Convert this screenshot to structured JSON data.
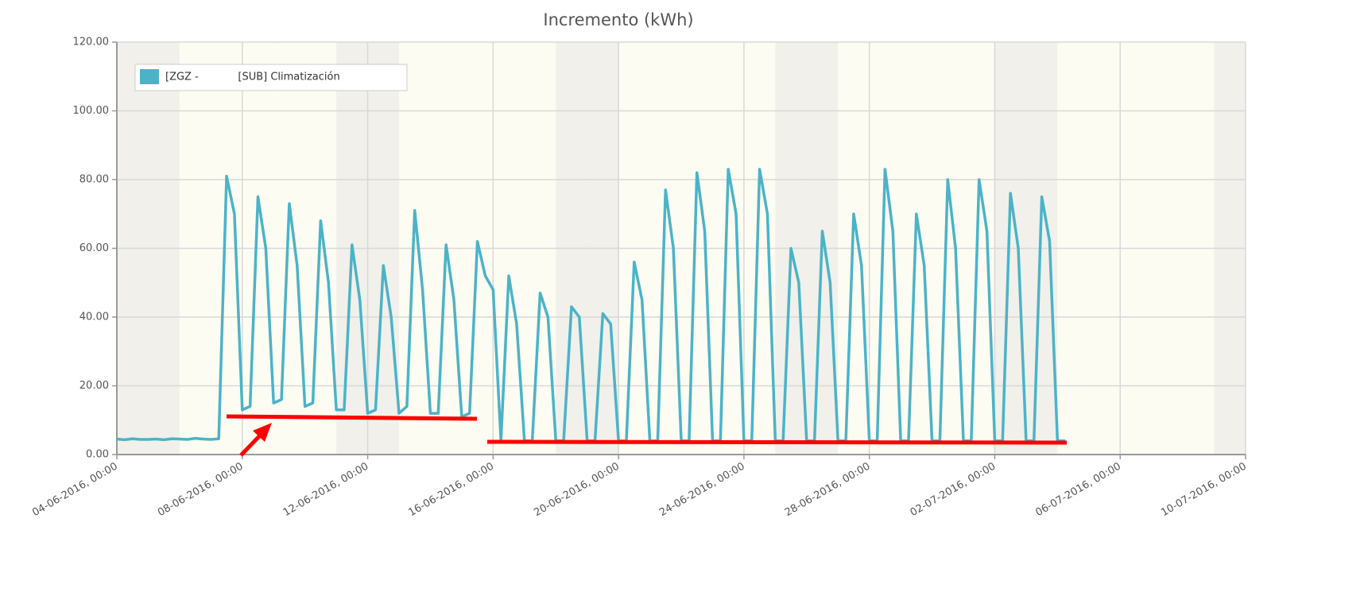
{
  "chart_data": {
    "type": "line",
    "title": "Incremento (kWh)",
    "x": [
      "2016-06-04T00:00",
      "2016-06-04T06:00",
      "2016-06-04T12:00",
      "2016-06-04T18:00",
      "2016-06-05T00:00",
      "2016-06-05T06:00",
      "2016-06-05T12:00",
      "2016-06-05T18:00",
      "2016-06-06T00:00",
      "2016-06-06T06:00",
      "2016-06-06T12:00",
      "2016-06-06T18:00",
      "2016-06-07T00:00",
      "2016-06-07T06:00",
      "2016-06-07T12:00",
      "2016-06-07T18:00",
      "2016-06-08T00:00",
      "2016-06-08T06:00",
      "2016-06-08T12:00",
      "2016-06-08T18:00",
      "2016-06-09T00:00",
      "2016-06-09T06:00",
      "2016-06-09T12:00",
      "2016-06-09T18:00",
      "2016-06-10T00:00",
      "2016-06-10T06:00",
      "2016-06-10T12:00",
      "2016-06-10T18:00",
      "2016-06-11T00:00",
      "2016-06-11T06:00",
      "2016-06-11T12:00",
      "2016-06-11T18:00",
      "2016-06-12T00:00",
      "2016-06-12T06:00",
      "2016-06-12T12:00",
      "2016-06-12T18:00",
      "2016-06-13T00:00",
      "2016-06-13T06:00",
      "2016-06-13T12:00",
      "2016-06-13T18:00",
      "2016-06-14T00:00",
      "2016-06-14T06:00",
      "2016-06-14T12:00",
      "2016-06-14T18:00",
      "2016-06-15T00:00",
      "2016-06-15T06:00",
      "2016-06-15T12:00",
      "2016-06-15T18:00",
      "2016-06-16T00:00",
      "2016-06-16T06:00",
      "2016-06-16T12:00",
      "2016-06-16T18:00",
      "2016-06-17T00:00",
      "2016-06-17T06:00",
      "2016-06-17T12:00",
      "2016-06-17T18:00",
      "2016-06-18T00:00",
      "2016-06-18T06:00",
      "2016-06-18T12:00",
      "2016-06-18T18:00",
      "2016-06-19T00:00",
      "2016-06-19T06:00",
      "2016-06-19T12:00",
      "2016-06-19T18:00",
      "2016-06-20T00:00",
      "2016-06-20T06:00",
      "2016-06-20T12:00",
      "2016-06-20T18:00",
      "2016-06-21T00:00",
      "2016-06-21T06:00",
      "2016-06-21T12:00",
      "2016-06-21T18:00",
      "2016-06-22T00:00",
      "2016-06-22T06:00",
      "2016-06-22T12:00",
      "2016-06-22T18:00",
      "2016-06-23T00:00",
      "2016-06-23T06:00",
      "2016-06-23T12:00",
      "2016-06-23T18:00",
      "2016-06-24T00:00",
      "2016-06-24T06:00",
      "2016-06-24T12:00",
      "2016-06-24T18:00",
      "2016-06-25T00:00",
      "2016-06-25T06:00",
      "2016-06-25T12:00",
      "2016-06-25T18:00",
      "2016-06-26T00:00",
      "2016-06-26T06:00",
      "2016-06-26T12:00",
      "2016-06-26T18:00",
      "2016-06-27T00:00",
      "2016-06-27T06:00",
      "2016-06-27T12:00",
      "2016-06-27T18:00",
      "2016-06-28T00:00",
      "2016-06-28T06:00",
      "2016-06-28T12:00",
      "2016-06-28T18:00",
      "2016-06-29T00:00",
      "2016-06-29T06:00",
      "2016-06-29T12:00",
      "2016-06-29T18:00",
      "2016-06-30T00:00",
      "2016-06-30T06:00",
      "2016-06-30T12:00",
      "2016-06-30T18:00",
      "2016-07-01T00:00",
      "2016-07-01T06:00",
      "2016-07-01T12:00",
      "2016-07-01T18:00",
      "2016-07-02T00:00",
      "2016-07-02T06:00",
      "2016-07-02T12:00",
      "2016-07-02T18:00",
      "2016-07-03T00:00",
      "2016-07-03T06:00",
      "2016-07-03T12:00",
      "2016-07-03T18:00",
      "2016-07-04T00:00",
      "2016-07-04T06:00"
    ],
    "series": [
      {
        "name": "[ZGZ -            [SUB] Climatización",
        "color": "#4bb3c8",
        "values": [
          4.5,
          4.3,
          4.6,
          4.4,
          4.4,
          4.5,
          4.3,
          4.6,
          4.5,
          4.4,
          4.7,
          4.5,
          4.4,
          4.6,
          81,
          70,
          13,
          14,
          75,
          60,
          15,
          16,
          73,
          55,
          14,
          15,
          68,
          50,
          13,
          13,
          61,
          45,
          12,
          13,
          55,
          40,
          12,
          14,
          71,
          48,
          12,
          12,
          61,
          45,
          11,
          12,
          62,
          52,
          48,
          4,
          52,
          38,
          4,
          4,
          47,
          40,
          4,
          4,
          43,
          40,
          4,
          4,
          41,
          38,
          4,
          4,
          56,
          45,
          4,
          4,
          77,
          60,
          4,
          4,
          82,
          65,
          4,
          4,
          83,
          70,
          4,
          4,
          83,
          70,
          4,
          4,
          60,
          50,
          4,
          4,
          65,
          50,
          4,
          4,
          70,
          55,
          4,
          4,
          83,
          65,
          4,
          4,
          70,
          55,
          4,
          4,
          80,
          60,
          4,
          4,
          80,
          65,
          4,
          4,
          76,
          60,
          4,
          4,
          75,
          62,
          4,
          4
        ]
      }
    ],
    "xlim": [
      "2016-06-04T00:00",
      "2016-07-10T00:00"
    ],
    "xticks": [
      {
        "value": "2016-06-04T00:00",
        "label": "04-06-2016, 00:00"
      },
      {
        "value": "2016-06-08T00:00",
        "label": "08-06-2016, 00:00"
      },
      {
        "value": "2016-06-12T00:00",
        "label": "12-06-2016, 00:00"
      },
      {
        "value": "2016-06-16T00:00",
        "label": "16-06-2016, 00:00"
      },
      {
        "value": "2016-06-20T00:00",
        "label": "20-06-2016, 00:00"
      },
      {
        "value": "2016-06-24T00:00",
        "label": "24-06-2016, 00:00"
      },
      {
        "value": "2016-06-28T00:00",
        "label": "28-06-2016, 00:00"
      },
      {
        "value": "2016-07-02T00:00",
        "label": "02-07-2016, 00:00"
      },
      {
        "value": "2016-07-06T00:00",
        "label": "06-07-2016, 00:00"
      },
      {
        "value": "2016-07-10T00:00",
        "label": "10-07-2016, 00:00"
      }
    ],
    "ylim": [
      0,
      120
    ],
    "yticks": [
      {
        "value": 0,
        "label": "0.00"
      },
      {
        "value": 20,
        "label": "20.00"
      },
      {
        "value": 40,
        "label": "40.00"
      },
      {
        "value": 60,
        "label": "60.00"
      },
      {
        "value": 80,
        "label": "80.00"
      },
      {
        "value": 100,
        "label": "100.00"
      },
      {
        "value": 120,
        "label": "120.00"
      }
    ],
    "grid": true,
    "legend": "upper left"
  }
}
